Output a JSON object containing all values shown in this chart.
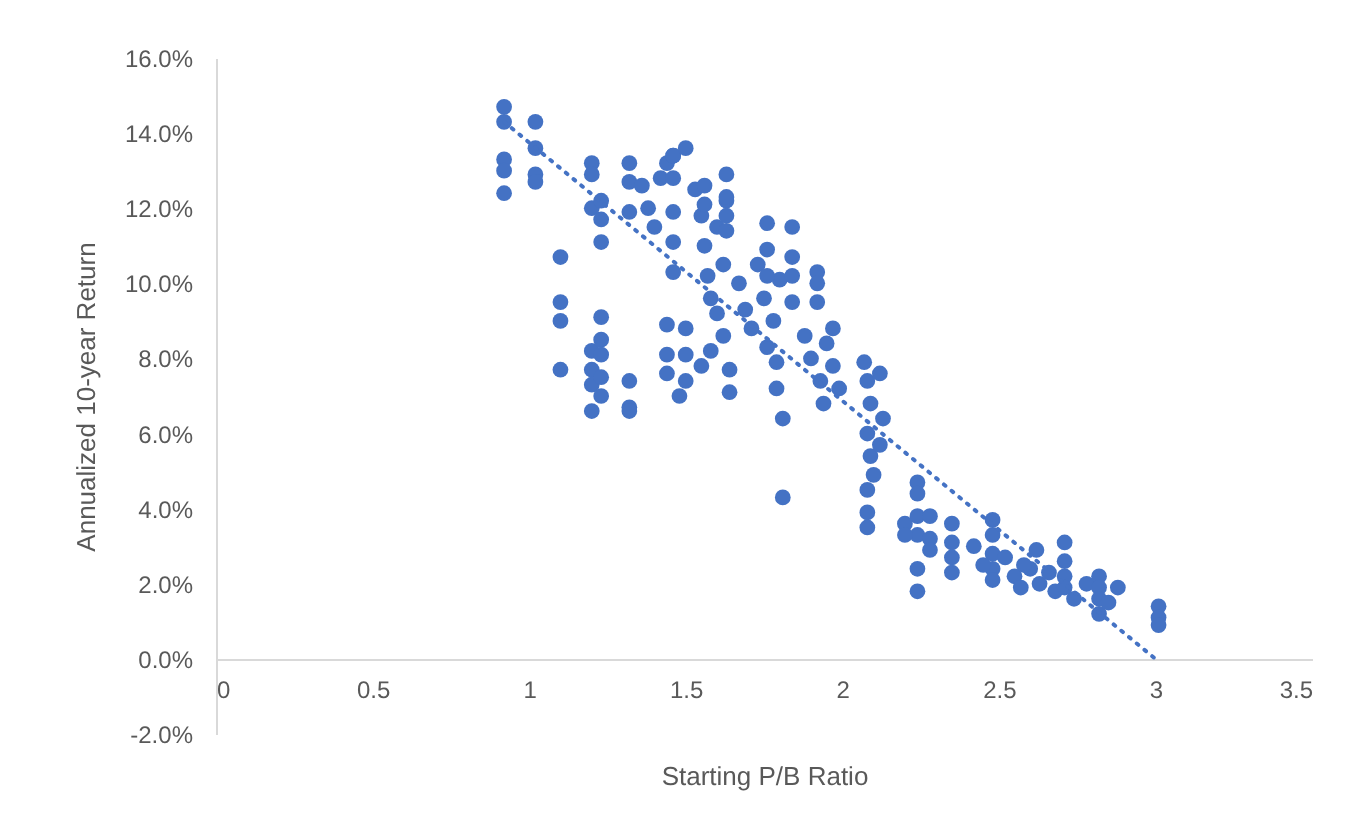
{
  "chart_data": {
    "type": "scatter",
    "xlabel": "Starting P/B Ratio",
    "ylabel": "Annualized 10-year Return",
    "xlim": [
      0,
      3.5
    ],
    "ylim": [
      -2,
      16
    ],
    "xticks": [
      0,
      0.5,
      1,
      1.5,
      2,
      2.5,
      3,
      3.5
    ],
    "yticks": [
      {
        "value": -2,
        "label": "-2.0%"
      },
      {
        "value": 0,
        "label": "0.0%"
      },
      {
        "value": 2,
        "label": "2.0%"
      },
      {
        "value": 4,
        "label": "4.0%"
      },
      {
        "value": 6,
        "label": "6.0%"
      },
      {
        "value": 8,
        "label": "8.0%"
      },
      {
        "value": 10,
        "label": "10.0%"
      },
      {
        "value": 12,
        "label": "12.0%"
      },
      {
        "value": 14,
        "label": "14.0%"
      },
      {
        "value": 16,
        "label": "16.0%"
      }
    ],
    "grid": false,
    "marker": "circle",
    "series": [
      {
        "color": "#4472c4",
        "x": [
          0.92,
          0.92,
          0.92,
          0.92,
          0.92,
          1.02,
          1.02,
          1.02,
          1.02,
          1.1,
          1.1,
          1.1,
          1.1,
          1.2,
          1.2,
          1.2,
          1.2,
          1.2,
          1.2,
          1.2,
          1.23,
          1.23,
          1.23,
          1.23,
          1.23,
          1.23,
          1.23,
          1.23,
          1.32,
          1.32,
          1.32,
          1.32,
          1.32,
          1.32,
          1.36,
          1.38,
          1.4,
          1.42,
          1.44,
          1.46,
          1.46,
          1.46,
          1.46,
          1.46,
          1.46,
          1.5,
          1.5,
          1.5,
          1.5,
          1.44,
          1.44,
          1.44,
          1.48,
          1.53,
          1.55,
          1.56,
          1.57,
          1.58,
          1.6,
          1.62,
          1.55,
          1.58,
          1.6,
          1.62,
          1.63,
          1.56,
          1.56,
          1.63,
          1.63,
          1.63,
          1.63,
          1.64,
          1.64,
          1.67,
          1.69,
          1.71,
          1.73,
          1.75,
          1.76,
          1.78,
          1.8,
          1.76,
          1.76,
          1.76,
          1.84,
          1.84,
          1.84,
          1.84,
          1.81,
          1.81,
          1.79,
          1.79,
          1.92,
          1.92,
          1.92,
          1.88,
          1.9,
          1.93,
          1.95,
          1.97,
          1.99,
          1.94,
          1.97,
          2.07,
          2.08,
          2.09,
          2.08,
          2.09,
          2.1,
          2.08,
          2.12,
          2.13,
          2.12,
          2.08,
          2.08,
          2.24,
          2.24,
          2.24,
          2.24,
          2.24,
          2.24,
          2.2,
          2.2,
          2.28,
          2.28,
          2.28,
          2.35,
          2.35,
          2.35,
          2.35,
          2.42,
          2.48,
          2.48,
          2.48,
          2.48,
          2.48,
          2.52,
          2.55,
          2.57,
          2.6,
          2.62,
          2.63,
          2.45,
          2.58,
          2.66,
          2.68,
          2.71,
          2.71,
          2.71,
          2.71,
          2.74,
          2.78,
          2.82,
          2.82,
          2.82,
          2.82,
          2.85,
          2.88,
          3.01,
          3.01,
          3.01
        ],
        "values": [
          14.7,
          14.3,
          13.3,
          13.0,
          12.4,
          14.3,
          13.6,
          12.9,
          12.7,
          10.7,
          9.5,
          9.0,
          7.7,
          13.2,
          12.9,
          12.0,
          8.2,
          7.7,
          7.3,
          6.6,
          12.2,
          11.7,
          11.1,
          9.1,
          8.5,
          8.1,
          7.5,
          7.0,
          13.2,
          12.7,
          11.9,
          7.4,
          6.7,
          6.6,
          12.6,
          12.0,
          11.5,
          12.8,
          13.2,
          13.4,
          13.4,
          12.8,
          11.9,
          11.1,
          10.3,
          13.6,
          8.8,
          8.1,
          7.4,
          8.9,
          8.1,
          7.6,
          7.0,
          12.5,
          11.8,
          11.0,
          10.2,
          9.6,
          9.2,
          8.6,
          7.8,
          8.2,
          11.5,
          10.5,
          12.2,
          12.6,
          12.1,
          12.9,
          12.3,
          11.8,
          11.4,
          7.7,
          7.1,
          10.0,
          9.3,
          8.8,
          10.5,
          9.6,
          8.3,
          9.0,
          10.1,
          11.6,
          10.9,
          10.2,
          11.5,
          10.7,
          10.2,
          9.5,
          6.4,
          4.3,
          7.9,
          7.2,
          10.3,
          10.0,
          9.5,
          8.6,
          8.0,
          7.4,
          8.4,
          7.8,
          7.2,
          6.8,
          8.8,
          7.9,
          7.4,
          6.8,
          6.0,
          5.4,
          4.9,
          4.5,
          7.6,
          6.4,
          5.7,
          3.9,
          3.5,
          4.7,
          4.4,
          3.8,
          3.3,
          2.4,
          1.8,
          3.6,
          3.3,
          3.8,
          3.2,
          2.9,
          3.6,
          3.1,
          2.7,
          2.3,
          3.0,
          3.7,
          3.3,
          2.8,
          2.4,
          2.1,
          2.7,
          2.2,
          1.9,
          2.4,
          2.9,
          2.0,
          2.5,
          2.5,
          2.3,
          1.8,
          3.1,
          2.6,
          2.2,
          1.9,
          1.6,
          2.0,
          2.2,
          1.9,
          1.6,
          1.2,
          1.5,
          1.9,
          1.4,
          1.1,
          0.9
        ]
      },
      {
        "type": "line",
        "color": "#4472c4",
        "line_style": "dotted",
        "marker": "none",
        "x": [
          0.92,
          3.0
        ],
        "values": [
          14.3,
          0
        ]
      }
    ]
  }
}
